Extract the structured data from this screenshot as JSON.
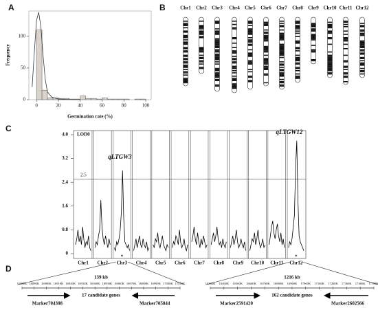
{
  "panel_labels": [
    "A",
    "B",
    "C",
    "D"
  ],
  "chart_data": [
    {
      "type": "histogram",
      "xlabel": "Germination rate (%)",
      "ylabel": "Frequency",
      "bins": [
        0,
        5,
        10,
        15,
        20,
        25,
        30,
        35,
        40,
        45,
        50,
        55,
        60,
        65,
        70,
        75,
        80,
        85,
        90,
        95,
        100
      ],
      "counts": [
        110,
        15,
        3,
        3,
        2,
        2,
        1,
        1,
        6,
        2,
        2,
        1,
        3,
        1,
        1,
        1,
        1,
        0,
        1,
        1
      ],
      "color": "#d9d3cc",
      "curve_x": [
        -4,
        -2,
        0,
        2,
        4,
        6,
        8,
        10,
        14,
        20,
        30,
        40
      ],
      "curve_y": [
        20,
        75,
        125,
        138,
        115,
        70,
        32,
        12,
        4,
        1,
        0.3,
        0.1
      ],
      "xlim": [
        -7,
        105
      ],
      "xticks": [
        0,
        20,
        40,
        60,
        80,
        100
      ],
      "ylim": [
        0,
        140
      ],
      "yticks": [
        0,
        50,
        100
      ]
    },
    {
      "type": "line",
      "ylabel": "LOD0",
      "chromosomes": [
        "Chr1",
        "Chr2",
        "Chr3",
        "Chr4",
        "Chr5",
        "Chr6",
        "Chr7",
        "Chr8",
        "Chr9",
        "Chr10",
        "Chr11",
        "Chr12"
      ],
      "lod": [
        [
          0.3,
          0.5,
          0.8,
          0.4,
          0.6,
          0.3,
          0.9,
          0.5,
          0.2,
          0.4,
          0.3,
          0.6,
          0.2,
          0.1
        ],
        [
          0.2,
          0.4,
          0.3,
          0.6,
          0.8,
          1.8,
          0.9,
          0.5,
          0.3,
          0.6,
          0.4,
          0.2,
          0.5,
          0.3
        ],
        [
          0.2,
          0.1,
          0.4,
          0.3,
          0.5,
          0.8,
          1.4,
          2.8,
          1.2,
          0.4,
          0.3,
          0.2,
          0.3,
          0.1
        ],
        [
          0.1,
          0.3,
          0.5,
          0.2,
          0.4,
          0.6,
          0.3,
          0.2,
          0.5,
          0.3,
          0.2,
          0.4,
          0.1,
          0.2
        ],
        [
          0.3,
          0.2,
          0.5,
          0.4,
          0.7,
          0.3,
          0.2,
          0.4,
          0.6,
          0.3,
          0.2,
          0.1,
          0.3,
          0.2
        ],
        [
          0.2,
          0.4,
          0.3,
          0.6,
          0.5,
          0.3,
          0.8,
          0.4,
          0.2,
          0.3,
          0.5,
          0.2,
          0.1,
          0.3
        ],
        [
          0.4,
          0.6,
          0.9,
          0.5,
          0.3,
          0.7,
          0.4,
          0.2,
          0.5,
          0.3,
          0.6,
          0.4,
          0.2,
          0.3
        ],
        [
          0.3,
          0.5,
          0.7,
          0.4,
          0.6,
          0.9,
          0.5,
          0.3,
          0.4,
          0.2,
          0.5,
          0.3,
          0.2,
          0.4
        ],
        [
          0.2,
          0.4,
          0.6,
          0.3,
          0.5,
          0.8,
          0.4,
          0.2,
          0.3,
          0.5,
          0.3,
          0.2,
          0.4,
          0.1
        ],
        [
          0.1,
          0.3,
          0.5,
          0.4,
          0.7,
          0.3,
          0.5,
          0.8,
          0.4,
          0.2,
          0.3,
          0.5,
          0.2,
          0.3
        ],
        [
          0.3,
          0.6,
          0.9,
          1.1,
          0.7,
          0.5,
          0.8,
          1.0,
          0.6,
          0.4,
          0.7,
          0.3,
          0.5,
          0.2
        ],
        [
          0.2,
          0.4,
          0.3,
          0.5,
          0.9,
          1.3,
          2.9,
          3.8,
          1.8,
          0.6,
          0.4,
          0.3,
          0.2,
          0.1
        ]
      ],
      "color": "#000000",
      "threshold": 2.5,
      "ylim": [
        0,
        4
      ],
      "yticks": [
        0,
        0.8,
        1.6,
        2.4,
        3.2,
        {
          "value": 4,
          "label": "4.0"
        }
      ],
      "annotations": [
        {
          "text": "qLTGW3",
          "chr": 2
        },
        {
          "text": "qLTGW12",
          "chr": 11
        }
      ],
      "stars": [
        {
          "text": "*",
          "chr": 2
        },
        {
          "text": "*",
          "chr": 11
        }
      ]
    }
  ],
  "chromosome_map": [
    "Chr1",
    "Chr2",
    "Chr3",
    "Chr4",
    "Chr5",
    "Chr6",
    "Chr7",
    "Chr8",
    "Chr9",
    "Chr10",
    "Chr11",
    "Chr12"
  ],
  "panel_d": {
    "left": {
      "size": "139 kb",
      "positions": [
        "16880K",
        "16890K",
        "16900K",
        "16910K",
        "16920K",
        "16930K",
        "16940K",
        "16950K",
        "16960K",
        "16970K",
        "16980K",
        "16990K",
        "17000K",
        "17010K"
      ],
      "genes": "17 candidate genes",
      "marker_left": "Marker704308",
      "marker_right": "Marker705844"
    },
    "right": {
      "size": "1216 kb",
      "positions": [
        "16360K",
        "16460K",
        "16560K",
        "16660K",
        "16760K",
        "16860K",
        "16960K",
        "17060K",
        "17160K",
        "17260K",
        "17360K",
        "17460K",
        "17590K"
      ],
      "genes": "162 candidate genes",
      "marker_left": "Marker2591420",
      "marker_right": "Marker2602566"
    }
  }
}
